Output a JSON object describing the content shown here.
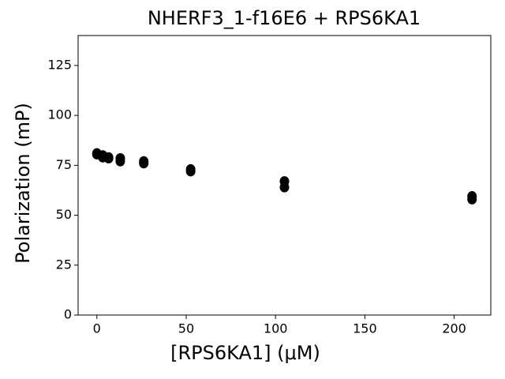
{
  "chart_data": {
    "type": "scatter",
    "title": "NHERF3_1-f16E6 + RPS6KA1",
    "x_label": "[RPS6KA1] (μM)",
    "y_label": "Polarization (mP)",
    "x": [
      0,
      0,
      3.28,
      3.28,
      6.56,
      6.56,
      13.1,
      13.1,
      26.25,
      26.25,
      52.5,
      52.5,
      105,
      105,
      210,
      210
    ],
    "values": [
      81,
      80.5,
      80,
      79,
      79,
      78.5,
      78.5,
      77,
      77,
      76,
      73,
      72,
      67,
      64,
      59.5,
      58
    ],
    "color": "#000000",
    "xlim": [
      -10.5,
      220.5
    ],
    "xticks": [
      0,
      50,
      100,
      150,
      200
    ],
    "ylim": [
      0,
      140
    ],
    "yticks": [
      0,
      25,
      50,
      75,
      100,
      125
    ],
    "grid": false
  }
}
